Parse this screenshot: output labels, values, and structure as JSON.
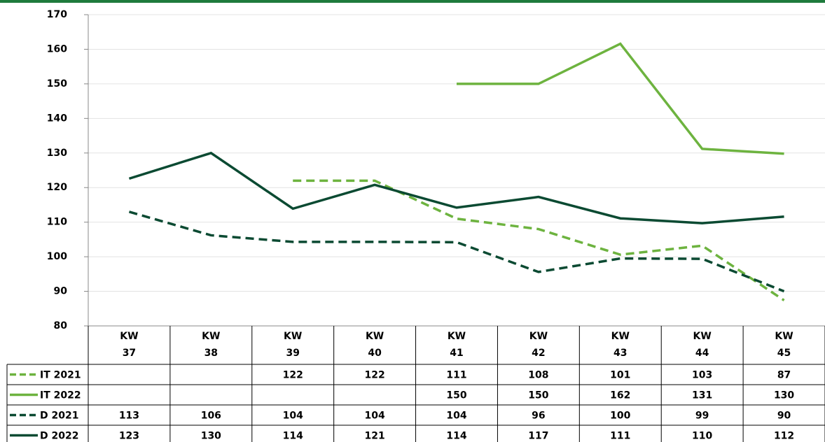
{
  "chart_data": {
    "type": "line",
    "categories": [
      "KW 37",
      "KW 38",
      "KW 39",
      "KW 40",
      "KW 41",
      "KW 42",
      "KW 43",
      "KW 44",
      "KW 45"
    ],
    "series": [
      {
        "name": "IT 2021",
        "color": "#6db33f",
        "dashed": true,
        "values": [
          null,
          null,
          122,
          122,
          111,
          108,
          100.6,
          103.2,
          87.4
        ],
        "value_labels": [
          null,
          null,
          "122",
          "122",
          "111",
          "108",
          "101",
          "103",
          "87"
        ]
      },
      {
        "name": "IT 2022",
        "color": "#6db33f",
        "dashed": false,
        "values": [
          null,
          null,
          null,
          null,
          150,
          150,
          161.6,
          131.2,
          129.8
        ],
        "value_labels": [
          null,
          null,
          null,
          null,
          "150",
          "150",
          "162",
          "131",
          "130"
        ]
      },
      {
        "name": "D 2021",
        "color": "#0b4a32",
        "dashed": true,
        "values": [
          113,
          106.2,
          104.3,
          104.3,
          104.2,
          95.6,
          99.5,
          99.4,
          90
        ],
        "value_labels": [
          "113",
          "106",
          "104",
          "104",
          "104",
          "96",
          "100",
          "99",
          "90"
        ]
      },
      {
        "name": "D 2022",
        "color": "#0b4a32",
        "dashed": false,
        "values": [
          122.6,
          130,
          113.9,
          120.8,
          114.2,
          117.3,
          111.1,
          109.7,
          111.6
        ],
        "value_labels": [
          "123",
          "130",
          "114",
          "121",
          "114",
          "117",
          "111",
          "110",
          "112"
        ]
      }
    ],
    "ylim": [
      80,
      170
    ],
    "yticks": [
      80,
      90,
      100,
      110,
      120,
      130,
      140,
      150,
      160,
      170
    ],
    "grid": true
  }
}
